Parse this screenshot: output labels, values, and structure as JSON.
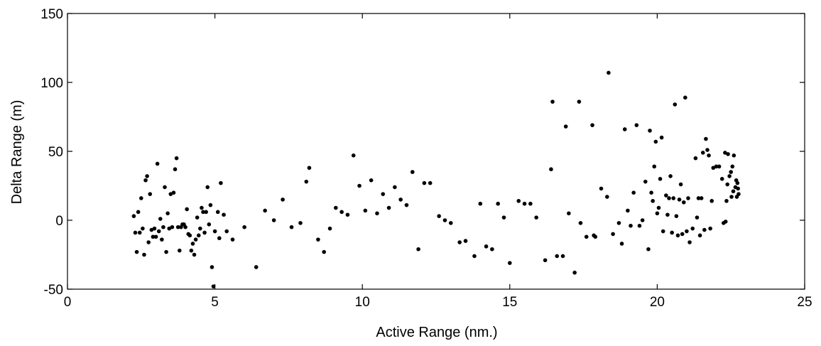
{
  "chart_data": {
    "type": "scatter",
    "title": "",
    "xlabel": "Active Range (nm.)",
    "ylabel": "Delta Range (m)",
    "xlim": [
      0,
      25
    ],
    "ylim": [
      -50,
      150
    ],
    "xticks": [
      0,
      5,
      10,
      15,
      20,
      25
    ],
    "yticks": [
      -50,
      0,
      50,
      100,
      150
    ],
    "xtick_labels": [
      "0",
      "5",
      "10",
      "15",
      "20",
      "25"
    ],
    "ytick_labels": [
      "-50",
      "0",
      "50",
      "100",
      "150"
    ],
    "grid": false,
    "legend": "none",
    "marker_color": "#000000",
    "series": [
      {
        "points": [
          [
            2.25,
            3
          ],
          [
            2.3,
            -9
          ],
          [
            2.35,
            -23
          ],
          [
            2.4,
            6
          ],
          [
            2.45,
            -9
          ],
          [
            2.5,
            16
          ],
          [
            2.55,
            -6
          ],
          [
            2.6,
            -25
          ],
          [
            2.65,
            29
          ],
          [
            2.7,
            32
          ],
          [
            2.75,
            -16
          ],
          [
            2.8,
            19
          ],
          [
            2.85,
            -7
          ],
          [
            2.9,
            -12
          ],
          [
            2.95,
            -6
          ],
          [
            3.0,
            -12
          ],
          [
            3.05,
            41
          ],
          [
            3.1,
            -8
          ],
          [
            3.15,
            1
          ],
          [
            3.2,
            -14
          ],
          [
            3.25,
            -5
          ],
          [
            3.3,
            24
          ],
          [
            3.35,
            -23
          ],
          [
            3.4,
            5
          ],
          [
            3.45,
            -6
          ],
          [
            3.5,
            19
          ],
          [
            3.55,
            -5
          ],
          [
            3.6,
            20
          ],
          [
            3.65,
            37
          ],
          [
            3.7,
            45
          ],
          [
            3.75,
            -5
          ],
          [
            3.8,
            -22
          ],
          [
            3.85,
            -5
          ],
          [
            3.9,
            -3
          ],
          [
            3.95,
            -3
          ],
          [
            4.0,
            -5
          ],
          [
            4.05,
            8
          ],
          [
            4.1,
            -10
          ],
          [
            4.15,
            -11
          ],
          [
            4.2,
            -22
          ],
          [
            4.25,
            -17
          ],
          [
            4.3,
            -25
          ],
          [
            4.35,
            -14
          ],
          [
            4.4,
            2
          ],
          [
            4.45,
            -11
          ],
          [
            4.5,
            -6
          ],
          [
            4.55,
            9
          ],
          [
            4.6,
            6
          ],
          [
            4.65,
            -9
          ],
          [
            4.7,
            6
          ],
          [
            4.75,
            24
          ],
          [
            4.8,
            -3
          ],
          [
            4.85,
            11
          ],
          [
            4.9,
            -34
          ],
          [
            4.95,
            -48
          ],
          [
            5.0,
            -8
          ],
          [
            5.1,
            6
          ],
          [
            5.15,
            -13
          ],
          [
            5.2,
            27
          ],
          [
            5.3,
            4
          ],
          [
            5.4,
            -8
          ],
          [
            5.6,
            -14
          ],
          [
            6.0,
            -5
          ],
          [
            6.4,
            -34
          ],
          [
            6.7,
            7
          ],
          [
            7.0,
            0
          ],
          [
            7.3,
            15
          ],
          [
            7.6,
            -5
          ],
          [
            7.9,
            -2
          ],
          [
            8.1,
            28
          ],
          [
            8.2,
            38
          ],
          [
            8.5,
            -14
          ],
          [
            8.7,
            -23
          ],
          [
            8.9,
            -6
          ],
          [
            9.1,
            9
          ],
          [
            9.3,
            6
          ],
          [
            9.5,
            4
          ],
          [
            9.7,
            47
          ],
          [
            9.9,
            25
          ],
          [
            10.1,
            7
          ],
          [
            10.3,
            29
          ],
          [
            10.5,
            5
          ],
          [
            10.7,
            19
          ],
          [
            10.9,
            9
          ],
          [
            11.1,
            24
          ],
          [
            11.3,
            15
          ],
          [
            11.5,
            11
          ],
          [
            11.7,
            35
          ],
          [
            11.9,
            -21
          ],
          [
            12.1,
            27
          ],
          [
            12.3,
            27
          ],
          [
            12.6,
            3
          ],
          [
            12.8,
            0
          ],
          [
            13.0,
            -2
          ],
          [
            13.3,
            -16
          ],
          [
            13.5,
            -15
          ],
          [
            13.8,
            -26
          ],
          [
            14.0,
            12
          ],
          [
            14.2,
            -19
          ],
          [
            14.4,
            -21
          ],
          [
            14.6,
            12
          ],
          [
            14.8,
            2
          ],
          [
            15.0,
            -31
          ],
          [
            15.3,
            14
          ],
          [
            15.5,
            12
          ],
          [
            15.7,
            12
          ],
          [
            15.9,
            2
          ],
          [
            16.2,
            -29
          ],
          [
            16.4,
            37
          ],
          [
            16.45,
            86
          ],
          [
            16.6,
            -26
          ],
          [
            16.8,
            -26
          ],
          [
            16.9,
            68
          ],
          [
            17.0,
            5
          ],
          [
            17.2,
            -38
          ],
          [
            17.35,
            86
          ],
          [
            17.4,
            -2
          ],
          [
            17.6,
            -12
          ],
          [
            17.8,
            69
          ],
          [
            17.85,
            -11
          ],
          [
            17.9,
            -12
          ],
          [
            18.1,
            23
          ],
          [
            18.3,
            17
          ],
          [
            18.35,
            107
          ],
          [
            18.5,
            -10
          ],
          [
            18.7,
            -2
          ],
          [
            18.8,
            -17
          ],
          [
            18.9,
            66
          ],
          [
            19.0,
            7
          ],
          [
            19.1,
            -4
          ],
          [
            19.2,
            20
          ],
          [
            19.3,
            69
          ],
          [
            19.4,
            -4
          ],
          [
            19.5,
            0
          ],
          [
            19.6,
            28
          ],
          [
            19.7,
            -21
          ],
          [
            19.75,
            65
          ],
          [
            19.8,
            20
          ],
          [
            19.85,
            14
          ],
          [
            19.9,
            39
          ],
          [
            19.95,
            57
          ],
          [
            20.0,
            5
          ],
          [
            20.05,
            9
          ],
          [
            20.1,
            30
          ],
          [
            20.15,
            60
          ],
          [
            20.2,
            -8
          ],
          [
            20.3,
            18
          ],
          [
            20.35,
            4
          ],
          [
            20.4,
            16
          ],
          [
            20.45,
            32
          ],
          [
            20.5,
            -9
          ],
          [
            20.55,
            16
          ],
          [
            20.6,
            84
          ],
          [
            20.65,
            3
          ],
          [
            20.7,
            -11
          ],
          [
            20.75,
            15
          ],
          [
            20.8,
            26
          ],
          [
            20.85,
            -10
          ],
          [
            20.9,
            13
          ],
          [
            20.95,
            89
          ],
          [
            21.0,
            -8
          ],
          [
            21.05,
            16
          ],
          [
            21.1,
            -16
          ],
          [
            21.2,
            -6
          ],
          [
            21.3,
            45
          ],
          [
            21.35,
            2
          ],
          [
            21.4,
            16
          ],
          [
            21.45,
            -11
          ],
          [
            21.5,
            16
          ],
          [
            21.55,
            49
          ],
          [
            21.6,
            -7
          ],
          [
            21.65,
            59
          ],
          [
            21.7,
            51
          ],
          [
            21.75,
            47
          ],
          [
            21.8,
            -6
          ],
          [
            21.85,
            14
          ],
          [
            21.9,
            38
          ],
          [
            22.0,
            39
          ],
          [
            22.1,
            39
          ],
          [
            22.2,
            30
          ],
          [
            22.25,
            -2
          ],
          [
            22.3,
            49
          ],
          [
            22.32,
            -1
          ],
          [
            22.35,
            14
          ],
          [
            22.38,
            26
          ],
          [
            22.4,
            48
          ],
          [
            22.45,
            32
          ],
          [
            22.5,
            35
          ],
          [
            22.52,
            17
          ],
          [
            22.55,
            39
          ],
          [
            22.58,
            21
          ],
          [
            22.6,
            47
          ],
          [
            22.65,
            24
          ],
          [
            22.68,
            29
          ],
          [
            22.7,
            17
          ],
          [
            22.72,
            27
          ],
          [
            22.74,
            23
          ],
          [
            22.76,
            19
          ]
        ]
      }
    ]
  }
}
